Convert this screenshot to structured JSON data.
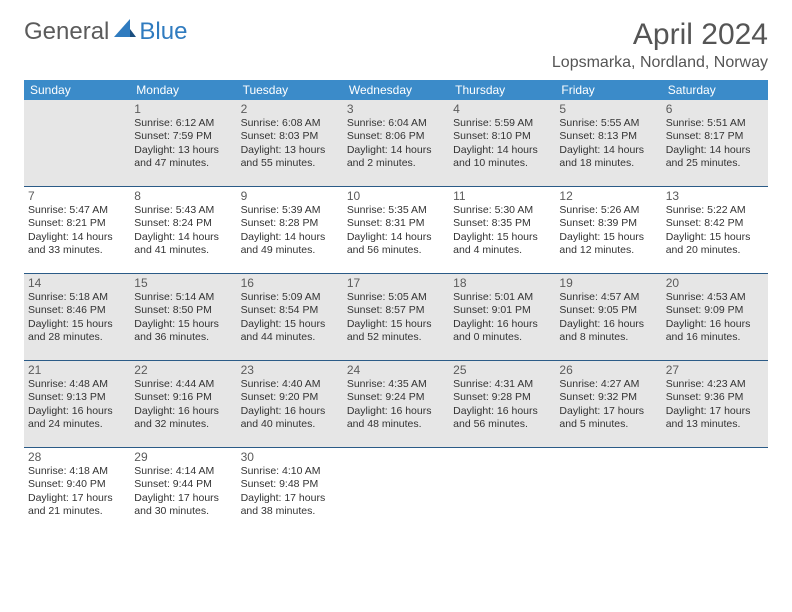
{
  "logo": {
    "part1": "General",
    "part2": "Blue"
  },
  "title": "April 2024",
  "location": "Lopsmarka, Nordland, Norway",
  "colors": {
    "headerBg": "#3b8bc9",
    "headerText": "#ffffff",
    "shadedBg": "#e6e6e6",
    "borderColor": "#2b5b87",
    "textColor": "#333333",
    "logoGray": "#5b5b5b",
    "logoBlue": "#2f7bbf"
  },
  "weekdays": [
    "Sunday",
    "Monday",
    "Tuesday",
    "Wednesday",
    "Thursday",
    "Friday",
    "Saturday"
  ],
  "weeks": [
    [
      {
        "day": "",
        "sunrise": "",
        "sunset": "",
        "daylight1": "",
        "daylight2": "",
        "shaded": true
      },
      {
        "day": "1",
        "sunrise": "Sunrise: 6:12 AM",
        "sunset": "Sunset: 7:59 PM",
        "daylight1": "Daylight: 13 hours",
        "daylight2": "and 47 minutes.",
        "shaded": true
      },
      {
        "day": "2",
        "sunrise": "Sunrise: 6:08 AM",
        "sunset": "Sunset: 8:03 PM",
        "daylight1": "Daylight: 13 hours",
        "daylight2": "and 55 minutes.",
        "shaded": true
      },
      {
        "day": "3",
        "sunrise": "Sunrise: 6:04 AM",
        "sunset": "Sunset: 8:06 PM",
        "daylight1": "Daylight: 14 hours",
        "daylight2": "and 2 minutes.",
        "shaded": true
      },
      {
        "day": "4",
        "sunrise": "Sunrise: 5:59 AM",
        "sunset": "Sunset: 8:10 PM",
        "daylight1": "Daylight: 14 hours",
        "daylight2": "and 10 minutes.",
        "shaded": true
      },
      {
        "day": "5",
        "sunrise": "Sunrise: 5:55 AM",
        "sunset": "Sunset: 8:13 PM",
        "daylight1": "Daylight: 14 hours",
        "daylight2": "and 18 minutes.",
        "shaded": true
      },
      {
        "day": "6",
        "sunrise": "Sunrise: 5:51 AM",
        "sunset": "Sunset: 8:17 PM",
        "daylight1": "Daylight: 14 hours",
        "daylight2": "and 25 minutes.",
        "shaded": true
      }
    ],
    [
      {
        "day": "7",
        "sunrise": "Sunrise: 5:47 AM",
        "sunset": "Sunset: 8:21 PM",
        "daylight1": "Daylight: 14 hours",
        "daylight2": "and 33 minutes.",
        "shaded": false
      },
      {
        "day": "8",
        "sunrise": "Sunrise: 5:43 AM",
        "sunset": "Sunset: 8:24 PM",
        "daylight1": "Daylight: 14 hours",
        "daylight2": "and 41 minutes.",
        "shaded": false
      },
      {
        "day": "9",
        "sunrise": "Sunrise: 5:39 AM",
        "sunset": "Sunset: 8:28 PM",
        "daylight1": "Daylight: 14 hours",
        "daylight2": "and 49 minutes.",
        "shaded": false
      },
      {
        "day": "10",
        "sunrise": "Sunrise: 5:35 AM",
        "sunset": "Sunset: 8:31 PM",
        "daylight1": "Daylight: 14 hours",
        "daylight2": "and 56 minutes.",
        "shaded": false
      },
      {
        "day": "11",
        "sunrise": "Sunrise: 5:30 AM",
        "sunset": "Sunset: 8:35 PM",
        "daylight1": "Daylight: 15 hours",
        "daylight2": "and 4 minutes.",
        "shaded": false
      },
      {
        "day": "12",
        "sunrise": "Sunrise: 5:26 AM",
        "sunset": "Sunset: 8:39 PM",
        "daylight1": "Daylight: 15 hours",
        "daylight2": "and 12 minutes.",
        "shaded": false
      },
      {
        "day": "13",
        "sunrise": "Sunrise: 5:22 AM",
        "sunset": "Sunset: 8:42 PM",
        "daylight1": "Daylight: 15 hours",
        "daylight2": "and 20 minutes.",
        "shaded": false
      }
    ],
    [
      {
        "day": "14",
        "sunrise": "Sunrise: 5:18 AM",
        "sunset": "Sunset: 8:46 PM",
        "daylight1": "Daylight: 15 hours",
        "daylight2": "and 28 minutes.",
        "shaded": true
      },
      {
        "day": "15",
        "sunrise": "Sunrise: 5:14 AM",
        "sunset": "Sunset: 8:50 PM",
        "daylight1": "Daylight: 15 hours",
        "daylight2": "and 36 minutes.",
        "shaded": true
      },
      {
        "day": "16",
        "sunrise": "Sunrise: 5:09 AM",
        "sunset": "Sunset: 8:54 PM",
        "daylight1": "Daylight: 15 hours",
        "daylight2": "and 44 minutes.",
        "shaded": true
      },
      {
        "day": "17",
        "sunrise": "Sunrise: 5:05 AM",
        "sunset": "Sunset: 8:57 PM",
        "daylight1": "Daylight: 15 hours",
        "daylight2": "and 52 minutes.",
        "shaded": true
      },
      {
        "day": "18",
        "sunrise": "Sunrise: 5:01 AM",
        "sunset": "Sunset: 9:01 PM",
        "daylight1": "Daylight: 16 hours",
        "daylight2": "and 0 minutes.",
        "shaded": true
      },
      {
        "day": "19",
        "sunrise": "Sunrise: 4:57 AM",
        "sunset": "Sunset: 9:05 PM",
        "daylight1": "Daylight: 16 hours",
        "daylight2": "and 8 minutes.",
        "shaded": true
      },
      {
        "day": "20",
        "sunrise": "Sunrise: 4:53 AM",
        "sunset": "Sunset: 9:09 PM",
        "daylight1": "Daylight: 16 hours",
        "daylight2": "and 16 minutes.",
        "shaded": true
      }
    ],
    [
      {
        "day": "21",
        "sunrise": "Sunrise: 4:48 AM",
        "sunset": "Sunset: 9:13 PM",
        "daylight1": "Daylight: 16 hours",
        "daylight2": "and 24 minutes.",
        "shaded": true
      },
      {
        "day": "22",
        "sunrise": "Sunrise: 4:44 AM",
        "sunset": "Sunset: 9:16 PM",
        "daylight1": "Daylight: 16 hours",
        "daylight2": "and 32 minutes.",
        "shaded": true
      },
      {
        "day": "23",
        "sunrise": "Sunrise: 4:40 AM",
        "sunset": "Sunset: 9:20 PM",
        "daylight1": "Daylight: 16 hours",
        "daylight2": "and 40 minutes.",
        "shaded": true
      },
      {
        "day": "24",
        "sunrise": "Sunrise: 4:35 AM",
        "sunset": "Sunset: 9:24 PM",
        "daylight1": "Daylight: 16 hours",
        "daylight2": "and 48 minutes.",
        "shaded": true
      },
      {
        "day": "25",
        "sunrise": "Sunrise: 4:31 AM",
        "sunset": "Sunset: 9:28 PM",
        "daylight1": "Daylight: 16 hours",
        "daylight2": "and 56 minutes.",
        "shaded": true
      },
      {
        "day": "26",
        "sunrise": "Sunrise: 4:27 AM",
        "sunset": "Sunset: 9:32 PM",
        "daylight1": "Daylight: 17 hours",
        "daylight2": "and 5 minutes.",
        "shaded": true
      },
      {
        "day": "27",
        "sunrise": "Sunrise: 4:23 AM",
        "sunset": "Sunset: 9:36 PM",
        "daylight1": "Daylight: 17 hours",
        "daylight2": "and 13 minutes.",
        "shaded": true
      }
    ],
    [
      {
        "day": "28",
        "sunrise": "Sunrise: 4:18 AM",
        "sunset": "Sunset: 9:40 PM",
        "daylight1": "Daylight: 17 hours",
        "daylight2": "and 21 minutes.",
        "shaded": false
      },
      {
        "day": "29",
        "sunrise": "Sunrise: 4:14 AM",
        "sunset": "Sunset: 9:44 PM",
        "daylight1": "Daylight: 17 hours",
        "daylight2": "and 30 minutes.",
        "shaded": false
      },
      {
        "day": "30",
        "sunrise": "Sunrise: 4:10 AM",
        "sunset": "Sunset: 9:48 PM",
        "daylight1": "Daylight: 17 hours",
        "daylight2": "and 38 minutes.",
        "shaded": false
      },
      {
        "day": "",
        "sunrise": "",
        "sunset": "",
        "daylight1": "",
        "daylight2": "",
        "shaded": false
      },
      {
        "day": "",
        "sunrise": "",
        "sunset": "",
        "daylight1": "",
        "daylight2": "",
        "shaded": false
      },
      {
        "day": "",
        "sunrise": "",
        "sunset": "",
        "daylight1": "",
        "daylight2": "",
        "shaded": false
      },
      {
        "day": "",
        "sunrise": "",
        "sunset": "",
        "daylight1": "",
        "daylight2": "",
        "shaded": false
      }
    ]
  ]
}
